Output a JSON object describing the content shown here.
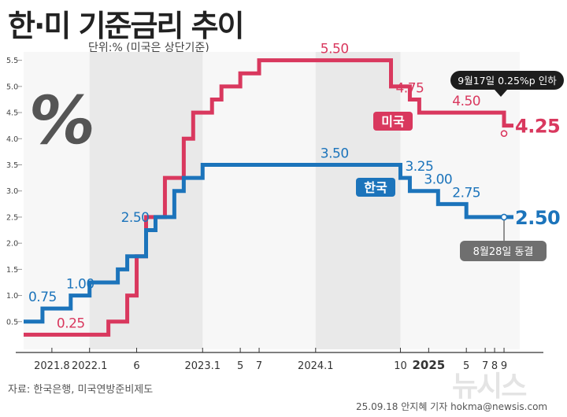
{
  "title": "한·미 기준금리 추이",
  "unit_note": "단위:% (미국은 상단기준)",
  "source": "자료: 한국은행, 미국연방준비제도",
  "credit": "25.09.18 안지혜 기자 hokma@newsis.com",
  "watermark": "뉴시스",
  "chart_data": {
    "type": "line",
    "step": true,
    "ylim": [
      0,
      5.6
    ],
    "y_ticks": [
      "0.5",
      "1.0",
      "1.5",
      "2.0",
      "2.5",
      "3.0",
      "3.5",
      "4.0",
      "4.5",
      "5.0",
      "5.5"
    ],
    "x_ticks": [
      "2021.8",
      "2022.1",
      "6",
      "2023.1",
      "5",
      "7",
      "2024.1",
      "10",
      "2025",
      "5",
      "7",
      "8",
      "9"
    ],
    "x_ticks_bold": [
      "2025"
    ],
    "grid": false,
    "colors": {
      "korea": "#1c74bb",
      "us": "#d9385e",
      "shade": "#e9e9e9"
    },
    "series": [
      {
        "name": "미국",
        "key": "us",
        "label_box": "미국",
        "x": [
          "2021.06",
          "2022.03",
          "2022.05",
          "2022.06",
          "2022.07",
          "2022.09",
          "2022.11",
          "2022.12",
          "2023.02",
          "2023.03",
          "2023.05",
          "2023.07",
          "2024.09",
          "2024.11",
          "2024.12",
          "2025.09"
        ],
        "values": [
          0.25,
          0.5,
          1.0,
          1.75,
          2.5,
          3.25,
          4.0,
          4.5,
          4.75,
          5.0,
          5.25,
          5.5,
          5.0,
          4.75,
          4.5,
          4.25
        ],
        "end_date": "2025.10",
        "value_labels": [
          {
            "text": "0.25",
            "x": "2021.11",
            "y": 0.25,
            "pos": "above"
          },
          {
            "text": "5.50",
            "x": "2024.03",
            "y": 5.5,
            "pos": "above"
          },
          {
            "text": "4.75",
            "x": "2024.11",
            "y": 4.75,
            "pos": "above"
          },
          {
            "text": "4.50",
            "x": "2025.05",
            "y": 4.5,
            "pos": "above"
          },
          {
            "text": "4.25",
            "x": "2025.10",
            "y": 4.25,
            "pos": "right",
            "bold": true
          }
        ]
      },
      {
        "name": "한국",
        "key": "korea",
        "label_box": "한국",
        "x": [
          "2021.06",
          "2021.08",
          "2021.11",
          "2022.01",
          "2022.04",
          "2022.05",
          "2022.07",
          "2022.08",
          "2022.10",
          "2022.11",
          "2023.01",
          "2024.10",
          "2024.11",
          "2025.02",
          "2025.05"
        ],
        "values": [
          0.5,
          0.75,
          1.0,
          1.25,
          1.5,
          1.75,
          2.25,
          2.5,
          3.0,
          3.25,
          3.5,
          3.25,
          3.0,
          2.75,
          2.5
        ],
        "end_date": "2025.10",
        "value_labels": [
          {
            "text": "0.75",
            "x": "2021.08",
            "y": 0.75,
            "pos": "above"
          },
          {
            "text": "1.00",
            "x": "2021.12",
            "y": 1.0,
            "pos": "above"
          },
          {
            "text": "2.50",
            "x": "2022.08",
            "y": 2.5,
            "pos": "left"
          },
          {
            "text": "3.50",
            "x": "2024.03",
            "y": 3.5,
            "pos": "above"
          },
          {
            "text": "3.25",
            "x": "2024.12",
            "y": 3.25,
            "pos": "above"
          },
          {
            "text": "3.00",
            "x": "2025.02",
            "y": 3.0,
            "pos": "above"
          },
          {
            "text": "2.75",
            "x": "2025.05",
            "y": 2.75,
            "pos": "above"
          },
          {
            "text": "2.50",
            "x": "2025.10",
            "y": 2.5,
            "pos": "right",
            "bold": true
          }
        ]
      }
    ],
    "shaded_bands": [
      [
        "2022.01",
        "2023.01"
      ],
      [
        "2024.01",
        "2024.10"
      ]
    ],
    "annotations": [
      {
        "text": "9월17일 0.25%p 인하",
        "series": "us",
        "x": "2025.09",
        "y": 4.25,
        "style": "dark"
      },
      {
        "text": "8월28일 동결",
        "series": "korea",
        "x": "2025.09",
        "y": 2.5,
        "style": "gray"
      }
    ]
  }
}
